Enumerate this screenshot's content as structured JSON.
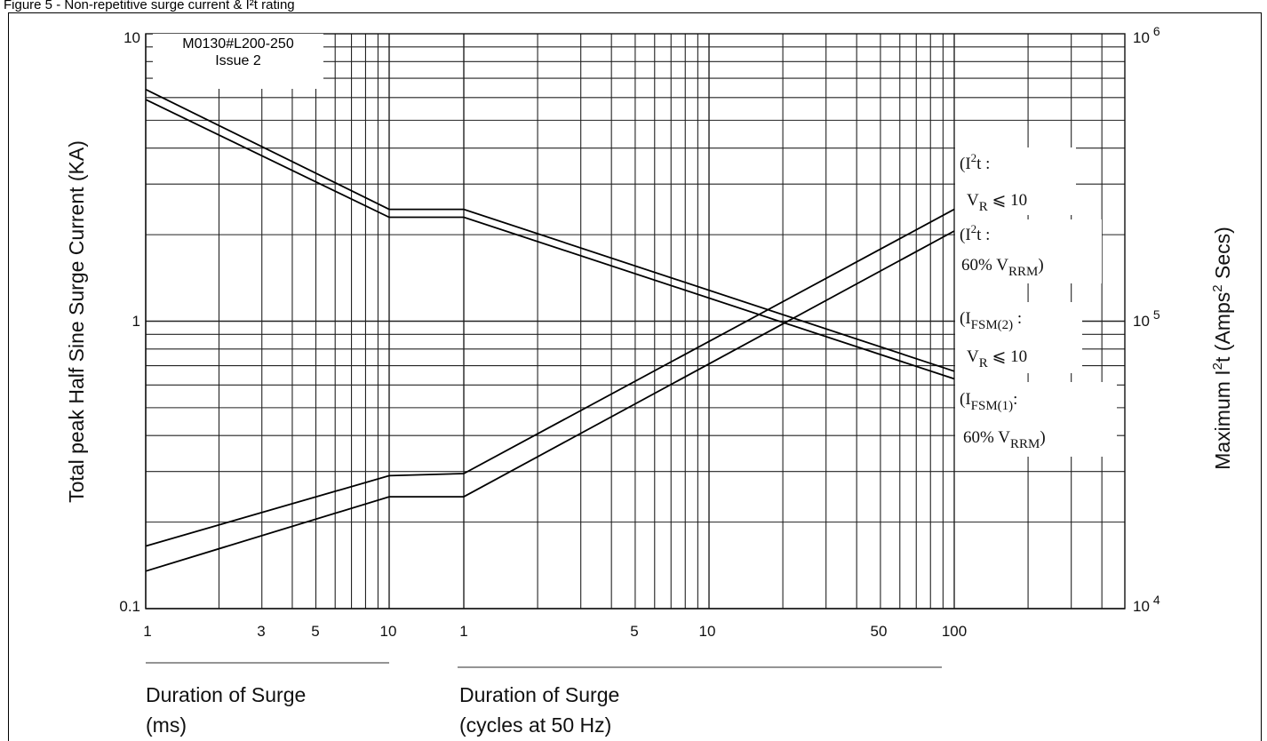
{
  "caption": "Figure 5 - Non-repetitive surge current & I²t rating",
  "stamp": {
    "line1": "M0130#L200-250",
    "line2": "Issue 2"
  },
  "chart_data": {
    "type": "line",
    "scale": "log-log",
    "grid": true,
    "ylabel_left": "Total peak Half Sine Surge Current (KA)",
    "ylabel_right": "Maximum I²t (Amps² Secs)",
    "ylim_left": [
      0.1,
      10
    ],
    "ylim_right": [
      10000,
      1000000
    ],
    "left_ticks": [
      "10",
      "1",
      "0.1"
    ],
    "right_ticks": [
      {
        "base": "10",
        "exp": "6"
      },
      {
        "base": "10",
        "exp": "5"
      },
      {
        "base": "10",
        "exp": "4"
      }
    ],
    "x_segments": [
      {
        "unit_label_line1": "Duration of Surge",
        "unit_label_line2": "(ms)",
        "range": [
          1,
          10
        ],
        "ticks": [
          "1",
          "3",
          "5",
          "10"
        ]
      },
      {
        "unit_label_line1": "Duration of Surge",
        "unit_label_line2": "(cycles at 50 Hz)",
        "range": [
          1,
          100
        ],
        "ticks": [
          "1",
          "5",
          "10",
          "50",
          "100"
        ]
      }
    ],
    "series": [
      {
        "name": "I²t: VR ≤ 10",
        "axis": "right",
        "points": [
          [
            "ms",
            1,
            16500
          ],
          [
            "ms",
            10,
            29000
          ],
          [
            "cyc",
            1,
            29500
          ],
          [
            "cyc",
            100,
            245000
          ]
        ]
      },
      {
        "name": "I²t: 60% VRRM",
        "axis": "right",
        "points": [
          [
            "ms",
            1,
            13500
          ],
          [
            "ms",
            10,
            24500
          ],
          [
            "cyc",
            1,
            24500
          ],
          [
            "cyc",
            100,
            206000
          ]
        ]
      },
      {
        "name": "IFSM(2): VR ≤ 10",
        "axis": "left",
        "points": [
          [
            "ms",
            1,
            6.4
          ],
          [
            "ms",
            10,
            2.45
          ],
          [
            "cyc",
            1,
            2.45
          ],
          [
            "cyc",
            100,
            0.67
          ]
        ]
      },
      {
        "name": "IFSM(1): 60% VRRM",
        "axis": "left",
        "points": [
          [
            "ms",
            1,
            5.9
          ],
          [
            "ms",
            10,
            2.3
          ],
          [
            "cyc",
            1,
            2.3
          ],
          [
            "cyc",
            100,
            0.63
          ]
        ]
      }
    ],
    "annotations": [
      {
        "line1_open": "(I",
        "line1_sup": "2",
        "line1_close": "t :",
        "line2_a": "V",
        "line2_sub": "R",
        "line2_b": " ⩽ 10"
      },
      {
        "line1_open": "(I",
        "line1_sup": "2",
        "line1_close": "t :",
        "line2_a": "60% V",
        "line2_sub": "RRM",
        "line2_b": ")"
      },
      {
        "line1_open": "(I",
        "line1_sub": "FSM(2)",
        "line1_close": " :",
        "line2_a": "V",
        "line2_sub": "R",
        "line2_b": " ⩽ 10"
      },
      {
        "line1_open": "(I",
        "line1_sub": "FSM(1)",
        "line1_close": ":",
        "line2_a": "60% V",
        "line2_sub": "RRM",
        "line2_b": ")"
      }
    ]
  }
}
